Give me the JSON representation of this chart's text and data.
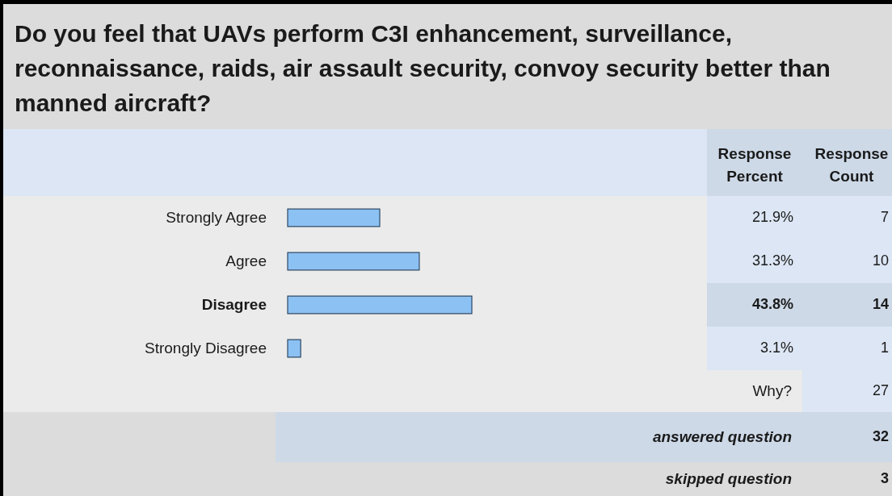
{
  "chart_data": {
    "type": "bar",
    "orientation": "horizontal",
    "title": "Do you feel that UAVs perform C3I enhancement, surveillance, reconnaissance, raids, air assault security, convoy security better than manned aircraft?",
    "categories": [
      "Strongly Agree",
      "Agree",
      "Disagree",
      "Strongly Disagree"
    ],
    "series": [
      {
        "name": "Response Percent",
        "color": "#8cc1f4",
        "values": [
          21.9,
          31.3,
          43.8,
          3.1
        ],
        "value_labels": [
          "21.9%",
          "31.3%",
          "43.8%",
          "3.1%"
        ]
      }
    ],
    "annotations": [
      "Response Count",
      "7",
      "10",
      "14",
      "1",
      "Why?",
      "27",
      "answered question",
      "32",
      "skipped question",
      "3"
    ]
  }
}
